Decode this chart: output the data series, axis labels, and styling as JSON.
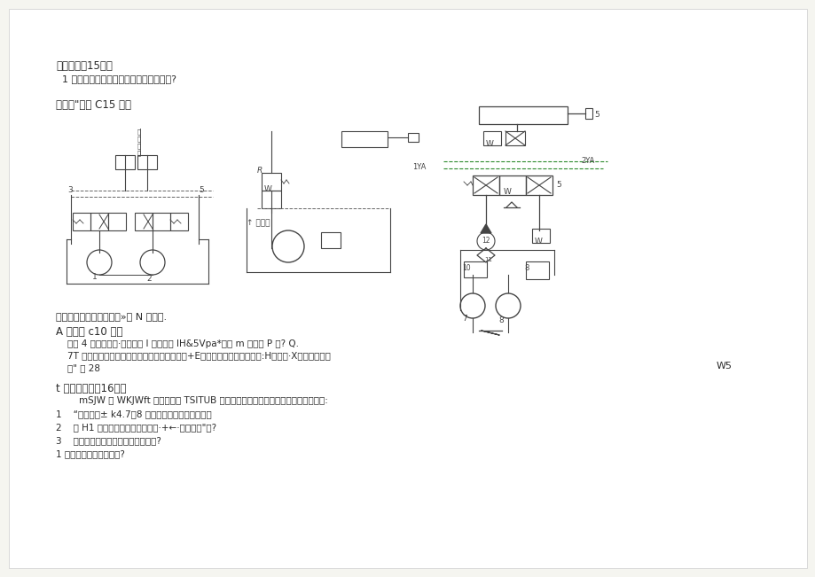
{
  "bg_color": "#f5f5f0",
  "page_bg": "#ffffff",
  "text_color": "#2a2a2a",
  "diagram_color": "#444444",
  "green_color": "#2d8a2d",
  "sections": {
    "q4_title": "四问释题（15分）",
    "q4_sub": "  1 容积大泥心关上作偑的必要条件是什么?",
    "q5_title": "五图形\"叩原 C15 分］",
    "caption": "「力山阀一斯不同路由序»元 N 的名称.",
    "A_title": "A 计算题 c10 分）",
    "A1": "    在距 4 所示网路斗·已知溶济 I 跟因力为 IH&5Vpa*诵计 m 印力为 P 尸? Q.",
    "A2": "    7T 能被强过减瓜同及钓路时的根夫可忽略不计+E嘛定活次才运动晰都西动:H煋。时·X好两夕的底力",
    "A3": "    侑\" 为 28",
    "W5": "W5",
    "t_title": "t 系统分析题（16分）",
    "t_intro": "        mSJW 系 WKJWft 可实现快鱼 TSITUB 一级位停止工作偏「人仕折非回各以卜鑰磁:",
    "t1": "1    “；几外人± k4.7、8 的名称及在表线中的作用二",
    "t2": "2    列 H1 电运长动作服力表（而电·+←·新电～一\"）?",
    "t3": "3    分析系鲨由称好液压小木同路用成?",
    "t_end": "1 石刘根汇收的油阻俱旅?"
  }
}
